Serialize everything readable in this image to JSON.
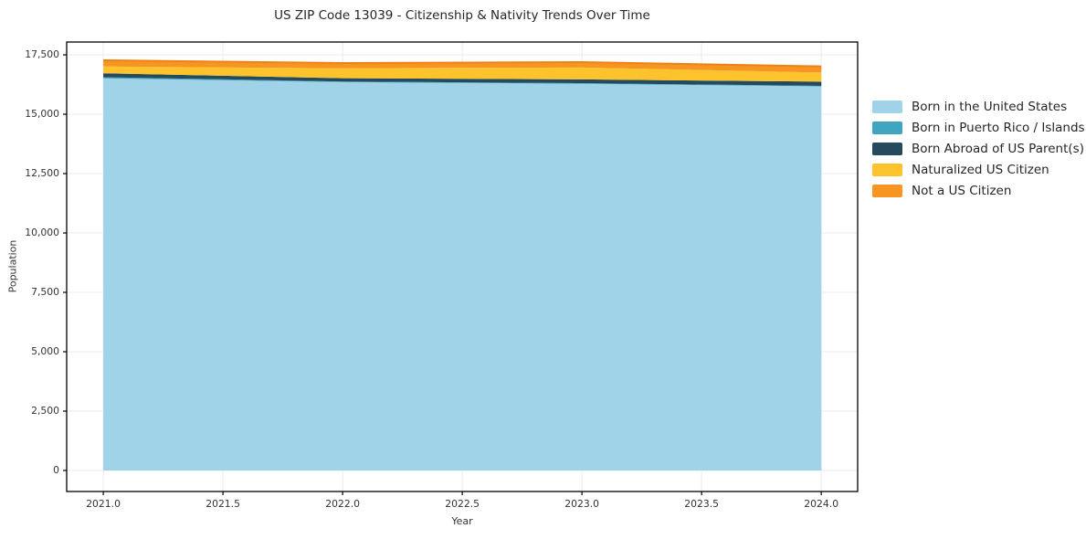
{
  "chart_data": {
    "type": "area",
    "stacked": true,
    "title": "US ZIP Code 13039 - Citizenship & Nativity Trends Over Time",
    "xlabel": "Year",
    "ylabel": "Population",
    "x": [
      2021,
      2022,
      2023,
      2024
    ],
    "series": [
      {
        "name": "Born in the United States",
        "color": "#a0d2e8",
        "values": [
          16510,
          16350,
          16280,
          16170
        ]
      },
      {
        "name": "Born in Puerto Rico / Islands",
        "color": "#3fa5c0",
        "values": [
          50,
          30,
          30,
          25
        ]
      },
      {
        "name": "Born Abroad of US Parent(s)",
        "color": "#254a5d",
        "values": [
          165,
          135,
          155,
          175
        ]
      },
      {
        "name": "Naturalized US Citizen",
        "color": "#fdc32d",
        "values": [
          285,
          420,
          500,
          385
        ]
      },
      {
        "name": "Not a US Citizen",
        "color": "#f79522",
        "values": [
          260,
          220,
          230,
          260
        ]
      }
    ],
    "totals": [
      17270,
      17155,
      17195,
      17015
    ],
    "top_edge_color": "#ee8212",
    "x_ticks": [
      "2021.0",
      "2021.5",
      "2022.0",
      "2022.5",
      "2023.0",
      "2023.5",
      "2024.0"
    ],
    "x_tick_values": [
      2021,
      2021.5,
      2022,
      2022.5,
      2023,
      2023.5,
      2024
    ],
    "y_ticks": [
      "0",
      "2,500",
      "5,000",
      "7,500",
      "10,000",
      "12,500",
      "15,000",
      "17,500"
    ],
    "y_tick_values": [
      0,
      2500,
      5000,
      7500,
      10000,
      12500,
      15000,
      17500
    ],
    "xlim": [
      2020.847,
      2024.152
    ],
    "ylim": [
      -885,
      18040
    ],
    "grid": true,
    "grid_color": "#ebebeb",
    "axis_color": "#000000",
    "background_color": "#ffffff",
    "legend_position": "right"
  }
}
